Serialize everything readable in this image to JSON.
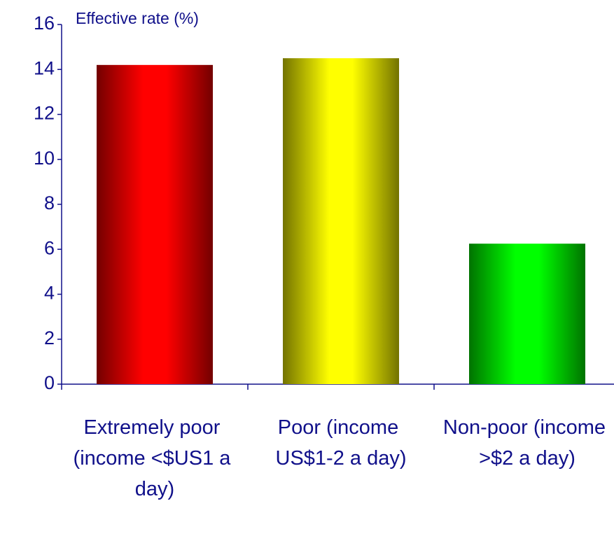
{
  "chart_data": {
    "type": "bar",
    "y_label": "Effective rate (%)",
    "categories": [
      "Extremely poor (income <$US1 a day)",
      "Poor (income US$1-2 a day)",
      "Non-poor (income >$2 a day)"
    ],
    "values": [
      14.2,
      14.5,
      6.25
    ],
    "colors": [
      "#ff0000",
      "#ffff00",
      "#00ff00"
    ],
    "ylim": [
      0,
      16
    ],
    "yticks": [
      0,
      2,
      4,
      6,
      8,
      10,
      12,
      14,
      16
    ],
    "grid": false
  }
}
